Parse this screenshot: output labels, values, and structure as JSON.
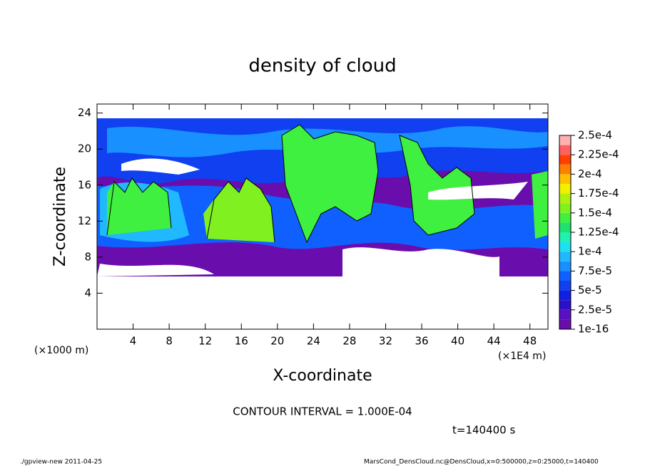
{
  "chart_data": {
    "type": "contour",
    "title": "density of cloud",
    "xlabel": "X-coordinate",
    "ylabel": "Z-coordinate",
    "x_unit_left": "(×1000 m)",
    "x_unit_right": "(×1E4 m)",
    "xlim": [
      0,
      50
    ],
    "ylim": [
      0,
      25
    ],
    "xticks": [
      4,
      8,
      12,
      16,
      20,
      24,
      28,
      32,
      36,
      40,
      44,
      48
    ],
    "yticks": [
      4,
      8,
      12,
      16,
      20,
      24
    ],
    "colorbar_ticks": [
      {
        "value": 1e-16,
        "label": "1e-16"
      },
      {
        "value": 2.5e-05,
        "label": "2.5e-5"
      },
      {
        "value": 5e-05,
        "label": "5e-5"
      },
      {
        "value": 7.5e-05,
        "label": "7.5e-5"
      },
      {
        "value": 0.0001,
        "label": "1e-4"
      },
      {
        "value": 0.000125,
        "label": "1.25e-4"
      },
      {
        "value": 0.00015,
        "label": "1.5e-4"
      },
      {
        "value": 0.000175,
        "label": "1.75e-4"
      },
      {
        "value": 0.0002,
        "label": "2e-4"
      },
      {
        "value": 0.000225,
        "label": "2.25e-4"
      },
      {
        "value": 0.00025,
        "label": "2.5e-4"
      }
    ],
    "colorbar_colors": [
      "#6a0dad",
      "#5a10c0",
      "#2a10c8",
      "#1020e0",
      "#1040f0",
      "#1060ff",
      "#1890ff",
      "#20b8ff",
      "#20e0f0",
      "#20f0b0",
      "#20e070",
      "#40f040",
      "#80f020",
      "#b0f010",
      "#f0f000",
      "#ffc000",
      "#ff8000",
      "#ff4000",
      "#ff6060",
      "#ffb0b0"
    ],
    "annotations": [
      "CONTOUR INTERVAL = 1.000E-04",
      "t=140400 s"
    ],
    "footer_left": "./gpview-new  2011-04-25",
    "footer_right": "MarsCond_DensCloud.nc@DensCloud,x=0:500000,z=0:25000,t=140400"
  }
}
